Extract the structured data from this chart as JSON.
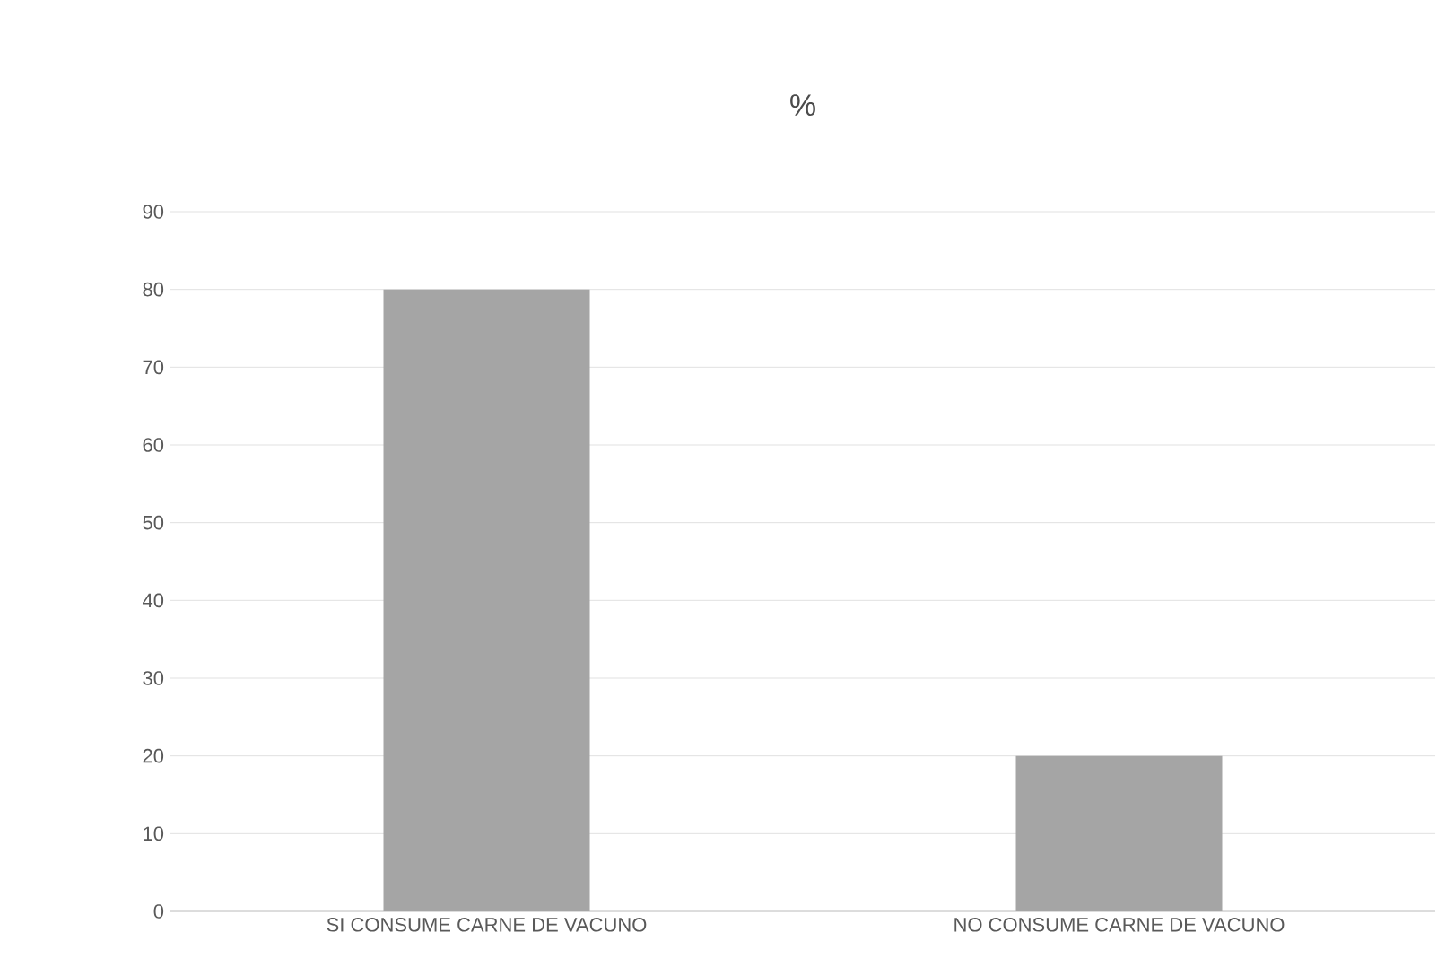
{
  "chart_data": {
    "type": "bar",
    "title": "%",
    "categories": [
      "SI CONSUME CARNE DE VACUNO",
      "NO CONSUME CARNE DE VACUNO"
    ],
    "values": [
      80,
      20
    ],
    "color": "#a5a5a5",
    "ylim": [
      0,
      90
    ],
    "yticks": [
      0,
      10,
      20,
      30,
      40,
      50,
      60,
      70,
      80,
      90
    ],
    "grid": "y"
  }
}
